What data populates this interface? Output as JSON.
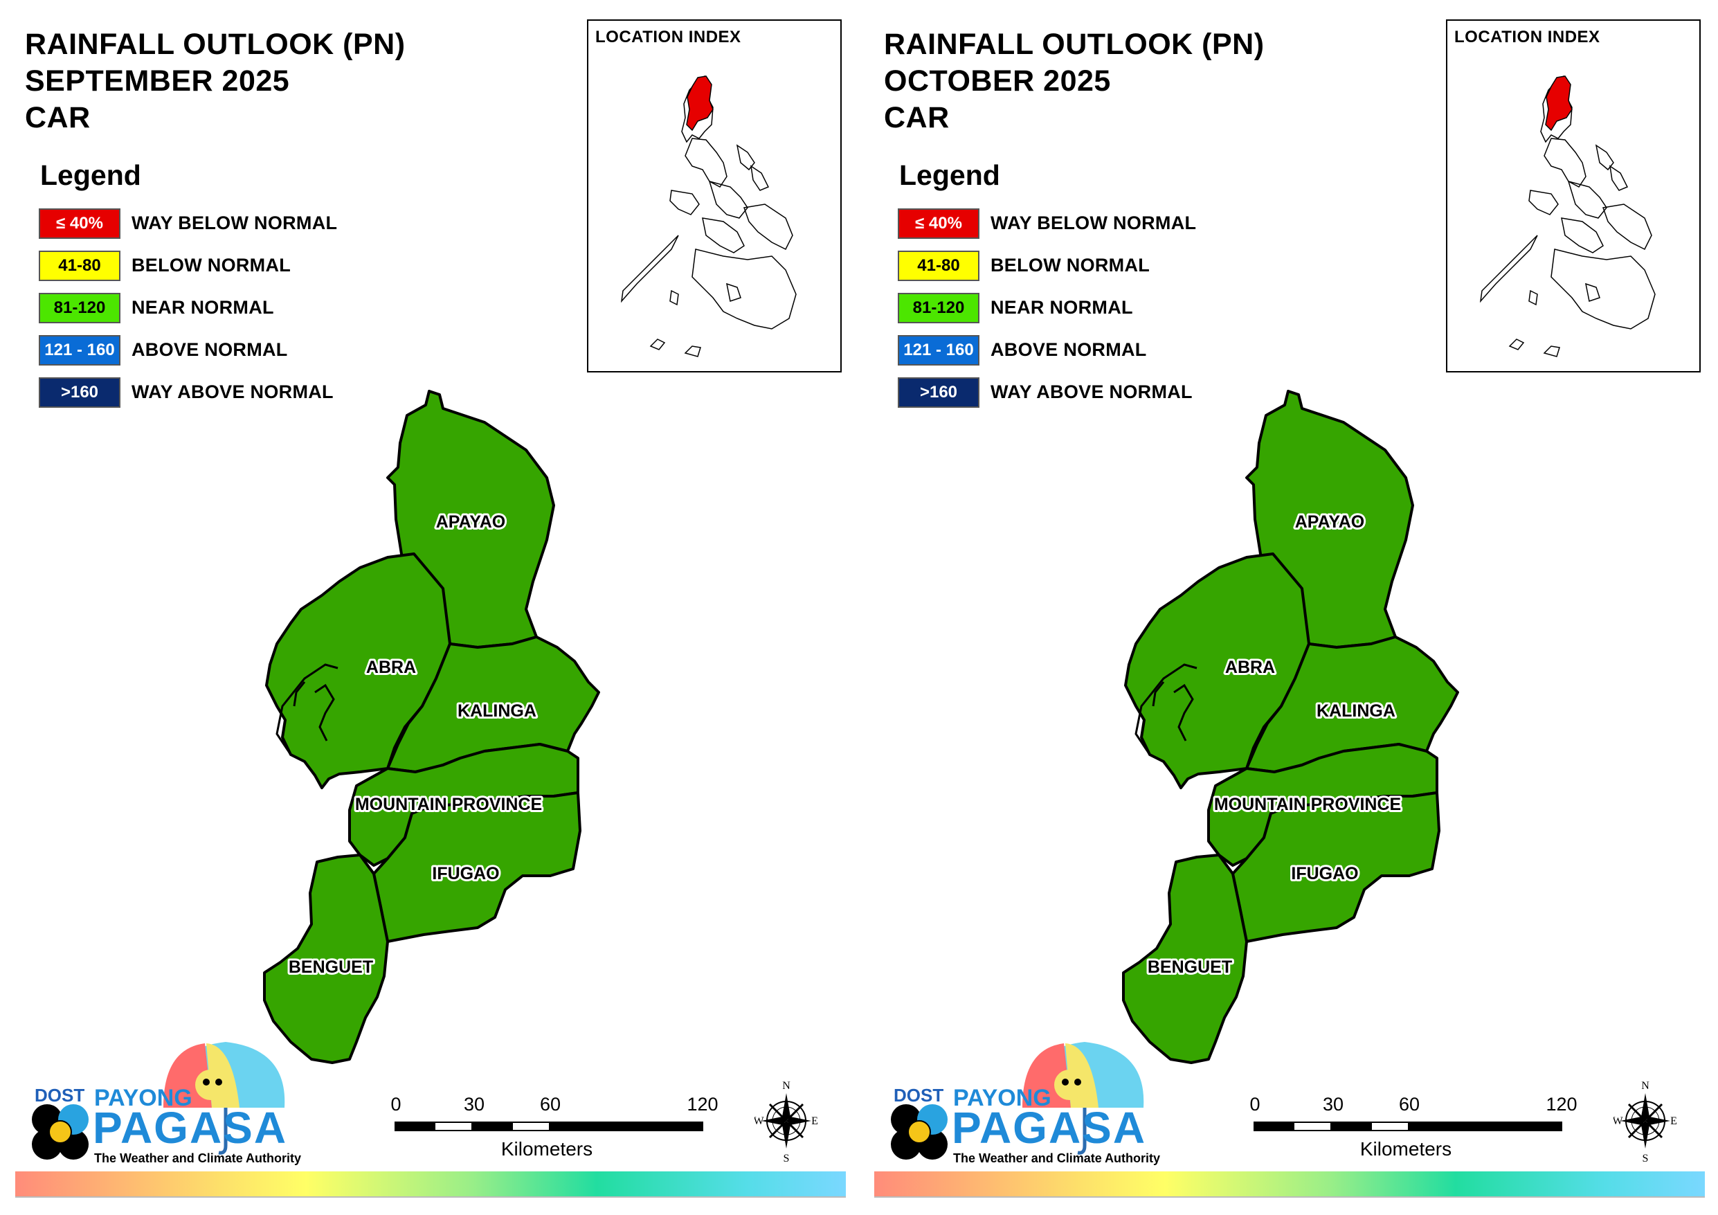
{
  "legend": {
    "title": "Legend",
    "items": [
      {
        "range": "≤ 40%",
        "label": "WAY BELOW NORMAL",
        "color": "#e60000",
        "text_color": "#ffffff"
      },
      {
        "range": "41-80",
        "label": "BELOW NORMAL",
        "color": "#ffff00",
        "text_color": "#000000"
      },
      {
        "range": "81-120",
        "label": "NEAR NORMAL",
        "color": "#4ce600",
        "text_color": "#000000"
      },
      {
        "range": "121 - 160",
        "label": "ABOVE NORMAL",
        "color": "#0a6cd6",
        "text_color": "#ffffff"
      },
      {
        "range": ">160",
        "label": "WAY ABOVE NORMAL",
        "color": "#0a2a6e",
        "text_color": "#ffffff"
      }
    ]
  },
  "panels": [
    {
      "title": {
        "line1": "RAINFALL OUTLOOK (PN)",
        "line2": "SEPTEMBER 2025",
        "line3": "CAR"
      },
      "inset_title": "LOCATION INDEX",
      "provinces": [
        {
          "name": "APAYAO",
          "category": "NEAR NORMAL"
        },
        {
          "name": "ABRA",
          "category": "NEAR NORMAL"
        },
        {
          "name": "KALINGA",
          "category": "NEAR NORMAL"
        },
        {
          "name": "MOUNTAIN PROVINCE",
          "category": "NEAR NORMAL"
        },
        {
          "name": "IFUGAO",
          "category": "NEAR NORMAL"
        },
        {
          "name": "BENGUET",
          "category": "NEAR NORMAL"
        }
      ]
    },
    {
      "title": {
        "line1": "RAINFALL OUTLOOK (PN)",
        "line2": "OCTOBER 2025",
        "line3": "CAR"
      },
      "inset_title": "LOCATION INDEX",
      "provinces": [
        {
          "name": "APAYAO",
          "category": "NEAR NORMAL"
        },
        {
          "name": "ABRA",
          "category": "NEAR NORMAL"
        },
        {
          "name": "KALINGA",
          "category": "NEAR NORMAL"
        },
        {
          "name": "MOUNTAIN PROVINCE",
          "category": "NEAR NORMAL"
        },
        {
          "name": "IFUGAO",
          "category": "NEAR NORMAL"
        },
        {
          "name": "BENGUET",
          "category": "NEAR NORMAL"
        }
      ]
    }
  ],
  "province_fill": "#36a500",
  "scale": {
    "ticks": [
      "0",
      "30",
      "60",
      "120"
    ],
    "unit": "Kilometers"
  },
  "compass": {
    "n": "N",
    "e": "E",
    "s": "S",
    "w": "W"
  },
  "logo": {
    "dost": "DOST",
    "payong": "PAYONG",
    "pagasa": "PAGASA",
    "tagline": "The Weather and Climate Authority"
  }
}
